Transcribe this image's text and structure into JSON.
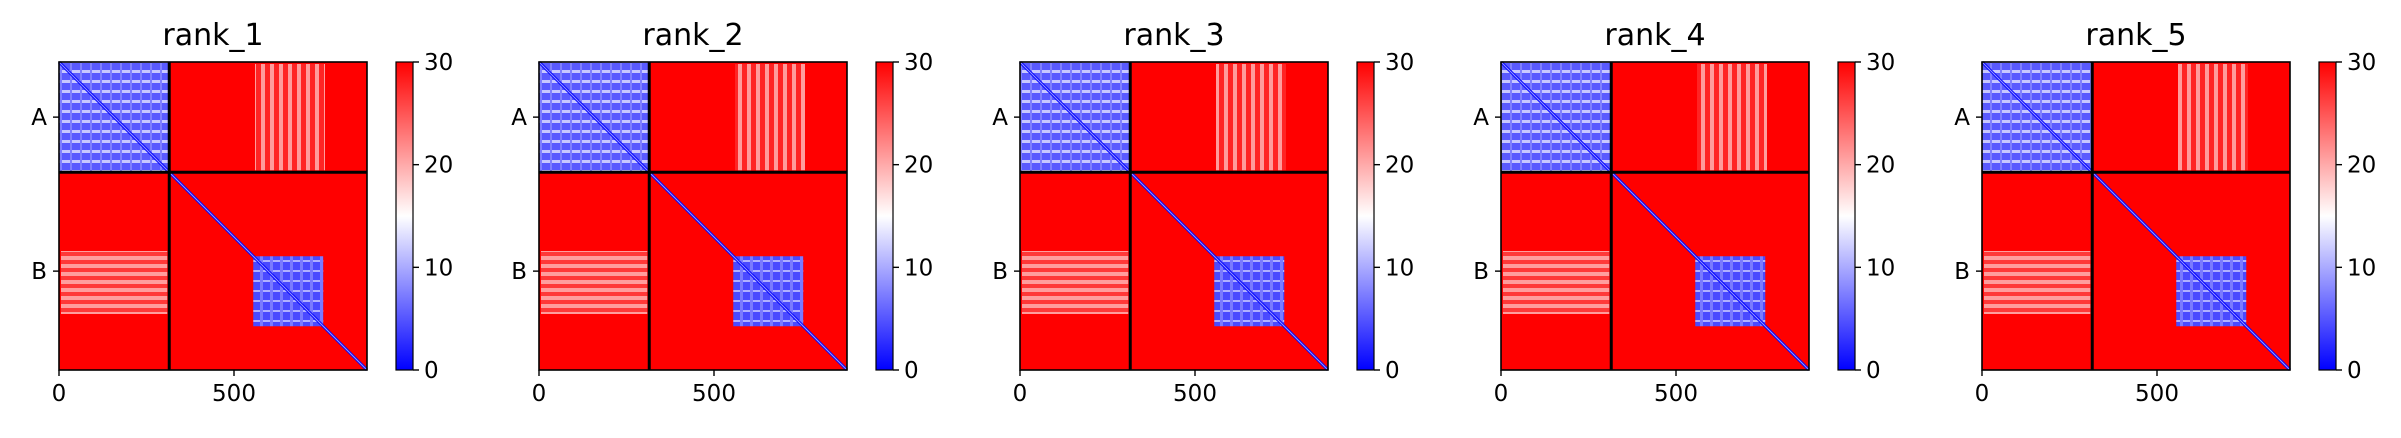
{
  "chart_data": {
    "type": "heatmap",
    "colormap": {
      "name": "bwr",
      "low": "#0000ff",
      "mid": "#ffffff",
      "high": "#ff0000"
    },
    "value_range": [
      0,
      30
    ],
    "colorbar_ticks": [
      "0",
      "10",
      "20",
      "30"
    ],
    "x_ticks": [
      {
        "value": 0,
        "label": "0"
      },
      {
        "value": 500,
        "label": "500"
      }
    ],
    "axis_range": [
      0,
      880
    ],
    "chain_boundary": 315,
    "y_tick_labels": [
      "A",
      "B"
    ],
    "panels": [
      {
        "title": "rank_1"
      },
      {
        "title": "rank_2"
      },
      {
        "title": "rank_3"
      },
      {
        "title": "rank_4"
      },
      {
        "title": "rank_5"
      }
    ]
  }
}
